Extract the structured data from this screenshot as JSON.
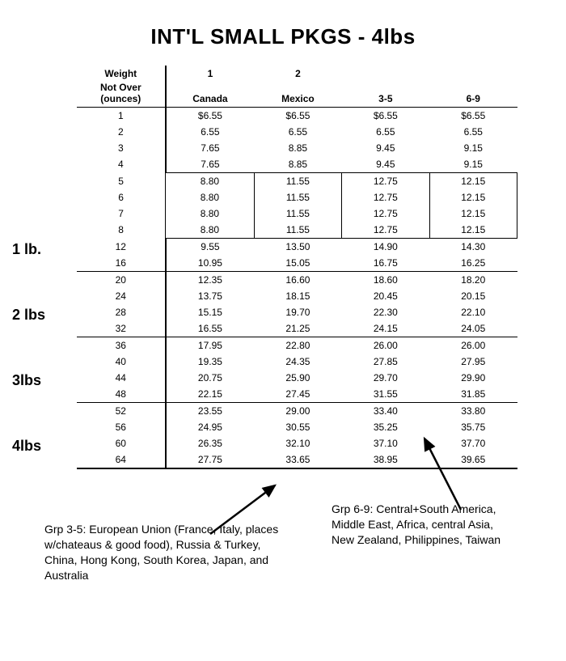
{
  "title": "INT'L SMALL PKGS - 4lbs",
  "columns": {
    "weight_header_line1": "Weight",
    "weight_header_line2": "Not Over",
    "weight_header_line3": "(ounces)",
    "c1_top": "1",
    "c1_bot": "Canada",
    "c2_top": "2",
    "c2_bot": "Mexico",
    "c3_top": "",
    "c3_bot": "3-5",
    "c4_top": "",
    "c4_bot": "6-9"
  },
  "rows": [
    {
      "wt": "1",
      "v": [
        "$6.55",
        "$6.55",
        "$6.55",
        "$6.55"
      ],
      "topline": true
    },
    {
      "wt": "2",
      "v": [
        "6.55",
        "6.55",
        "6.55",
        "6.55"
      ]
    },
    {
      "wt": "3",
      "v": [
        "7.65",
        "8.85",
        "9.45",
        "9.15"
      ]
    },
    {
      "wt": "4",
      "v": [
        "7.65",
        "8.85",
        "9.45",
        "9.15"
      ]
    },
    {
      "wt": "5",
      "v": [
        "8.80",
        "11.55",
        "12.75",
        "12.15"
      ],
      "box": "top"
    },
    {
      "wt": "6",
      "v": [
        "8.80",
        "11.55",
        "12.75",
        "12.15"
      ],
      "box": "mid"
    },
    {
      "wt": "7",
      "v": [
        "8.80",
        "11.55",
        "12.75",
        "12.15"
      ],
      "box": "mid"
    },
    {
      "wt": "8",
      "v": [
        "8.80",
        "11.55",
        "12.75",
        "12.15"
      ],
      "box": "bot"
    },
    {
      "wt": "12",
      "v": [
        "9.55",
        "13.50",
        "14.90",
        "14.30"
      ],
      "marker": "1 lb."
    },
    {
      "wt": "16",
      "v": [
        "10.95",
        "15.05",
        "16.75",
        "16.25"
      ]
    },
    {
      "wt": "20",
      "v": [
        "12.35",
        "16.60",
        "18.60",
        "18.20"
      ],
      "topline": true
    },
    {
      "wt": "24",
      "v": [
        "13.75",
        "18.15",
        "20.45",
        "20.15"
      ]
    },
    {
      "wt": "28",
      "v": [
        "15.15",
        "19.70",
        "22.30",
        "22.10"
      ],
      "marker": "2 lbs"
    },
    {
      "wt": "32",
      "v": [
        "16.55",
        "21.25",
        "24.15",
        "24.05"
      ]
    },
    {
      "wt": "36",
      "v": [
        "17.95",
        "22.80",
        "26.00",
        "26.00"
      ],
      "topline": true
    },
    {
      "wt": "40",
      "v": [
        "19.35",
        "24.35",
        "27.85",
        "27.95"
      ]
    },
    {
      "wt": "44",
      "v": [
        "20.75",
        "25.90",
        "29.70",
        "29.90"
      ],
      "marker": "3lbs"
    },
    {
      "wt": "48",
      "v": [
        "22.15",
        "27.45",
        "31.55",
        "31.85"
      ]
    },
    {
      "wt": "52",
      "v": [
        "23.55",
        "29.00",
        "33.40",
        "33.80"
      ],
      "topline": true
    },
    {
      "wt": "56",
      "v": [
        "24.95",
        "30.55",
        "35.25",
        "35.75"
      ]
    },
    {
      "wt": "60",
      "v": [
        "26.35",
        "32.10",
        "37.10",
        "37.70"
      ],
      "marker": "4lbs"
    },
    {
      "wt": "64",
      "v": [
        "27.75",
        "33.65",
        "38.95",
        "39.65"
      ]
    }
  ],
  "note_left": "Grp 3-5: European Union (France, Italy, places w/chateaus & good food), Russia & Turkey, China, Hong Kong, South Korea, Japan, and Australia",
  "note_right": "Grp 6-9: Central+South America, Middle East, Africa, central Asia, New Zealand, Philippines, Taiwan",
  "style": {
    "background_color": "#ffffff",
    "text_color": "#000000",
    "rule_color": "#000000",
    "title_fontsize": 26,
    "body_fontsize": 12,
    "marker_fontsize": 18,
    "note_fontsize": 14
  }
}
